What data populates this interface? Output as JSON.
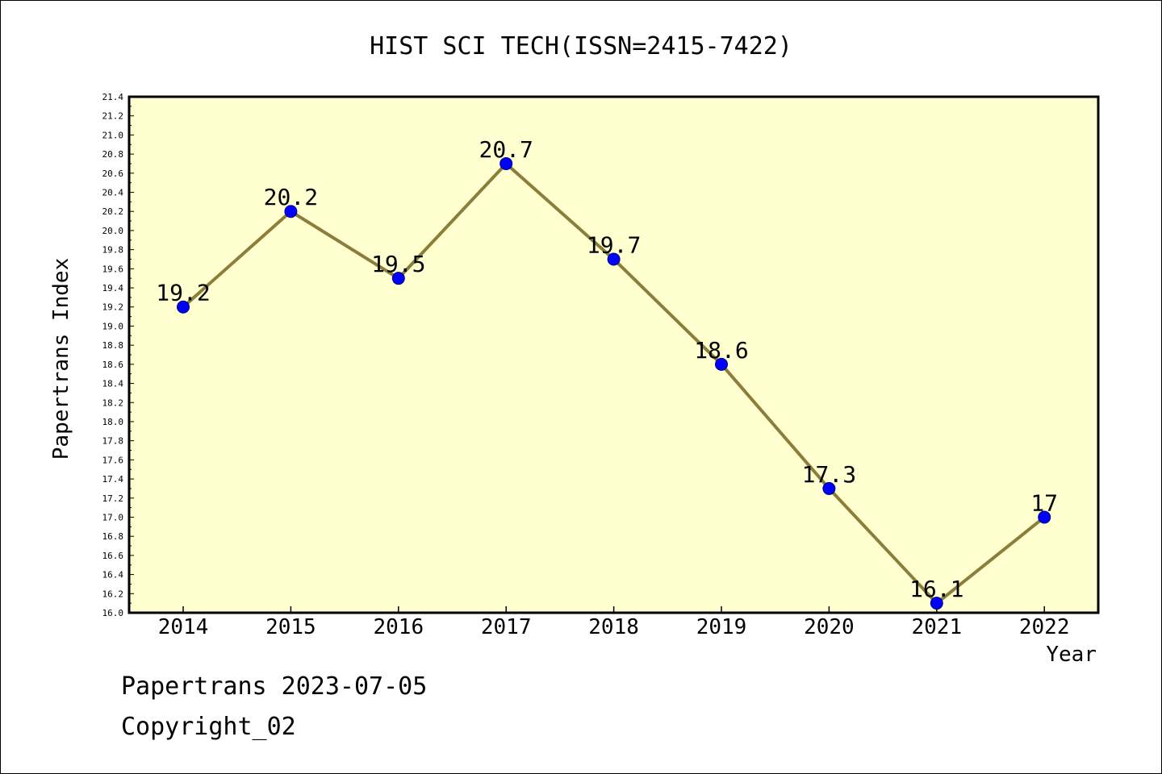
{
  "chart_data": {
    "type": "line",
    "title": "HIST SCI TECH(ISSN=2415-7422)",
    "xlabel": "Year",
    "ylabel": "Papertrans Index",
    "categories": [
      "2014",
      "2015",
      "2016",
      "2017",
      "2018",
      "2019",
      "2020",
      "2021",
      "2022"
    ],
    "series": [
      {
        "values": [
          19.2,
          20.2,
          19.5,
          20.7,
          19.7,
          18.6,
          17.3,
          16.1,
          17.0
        ],
        "labels": [
          "19.2",
          "20.2",
          "19.5",
          "20.7",
          "19.7",
          "18.6",
          "17.3",
          "16.1",
          "17"
        ]
      }
    ],
    "ylim": [
      16.0,
      21.4
    ],
    "ytick_step": 0.2,
    "grid": false,
    "legend": "none",
    "colors": {
      "plot_background": "#ffffd0",
      "line": "#8b7d3a",
      "marker": "#0000ff",
      "marker_edge": "#000080",
      "axis": "#000000"
    }
  },
  "footer": {
    "line1": "Papertrans 2023-07-05",
    "line2": "Copyright_02"
  }
}
